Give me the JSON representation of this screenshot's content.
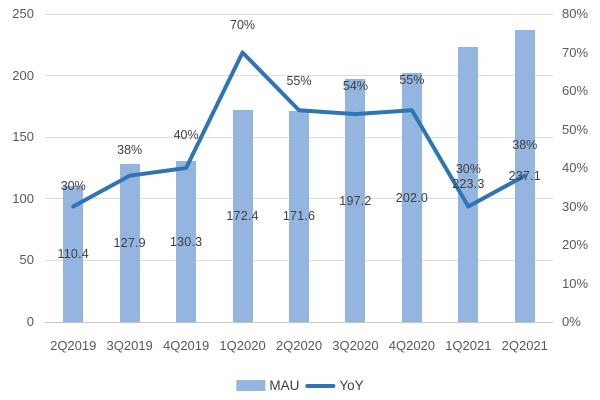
{
  "chart_data": {
    "type": "combo-bar-line",
    "categories": [
      "2Q2019",
      "3Q2019",
      "4Q2019",
      "1Q2020",
      "2Q2020",
      "3Q2020",
      "4Q2020",
      "1Q2021",
      "2Q2021"
    ],
    "series": [
      {
        "name": "MAU",
        "type": "bar",
        "axis": "left",
        "values": [
          110.4,
          127.9,
          130.3,
          172.4,
          171.6,
          197.2,
          202.0,
          223.3,
          237.1
        ],
        "value_labels": [
          "110.4",
          "127.9",
          "130.3",
          "172.4",
          "171.6",
          "197.2",
          "202.0",
          "223.3",
          "237.1"
        ],
        "color": "#93B5DF"
      },
      {
        "name": "YoY",
        "type": "line",
        "axis": "right",
        "values": [
          30,
          38,
          40,
          70,
          55,
          54,
          55,
          30,
          38
        ],
        "value_labels": [
          "30%",
          "38%",
          "40%",
          "70%",
          "55%",
          "54%",
          "55%",
          "30%",
          "38%"
        ],
        "color": "#2E75B6"
      }
    ],
    "left_axis": {
      "min": 0,
      "max": 250,
      "tick_labels": [
        "250",
        "200",
        "150",
        "100",
        "50",
        "0"
      ],
      "tick_values": [
        250,
        200,
        150,
        100,
        50,
        0
      ]
    },
    "right_axis": {
      "min": 0,
      "max": 80,
      "tick_labels": [
        "80%",
        "70%",
        "60%",
        "50%",
        "40%",
        "30%",
        "20%",
        "10%",
        "0%"
      ],
      "tick_values": [
        80,
        70,
        60,
        50,
        40,
        30,
        20,
        10,
        0
      ]
    },
    "grid": true,
    "legend_position": "bottom",
    "title": ""
  },
  "legend": {
    "mau_label": "MAU",
    "yoy_label": "YoY"
  },
  "colors": {
    "bar": "#93B5DF",
    "line": "#2E75B6",
    "gridline": "#DCDCDC",
    "axis_line": "#C6C6C6",
    "tick_text": "#595959",
    "data_label_text": "#3F3F3F",
    "background": "#FFFFFF"
  }
}
